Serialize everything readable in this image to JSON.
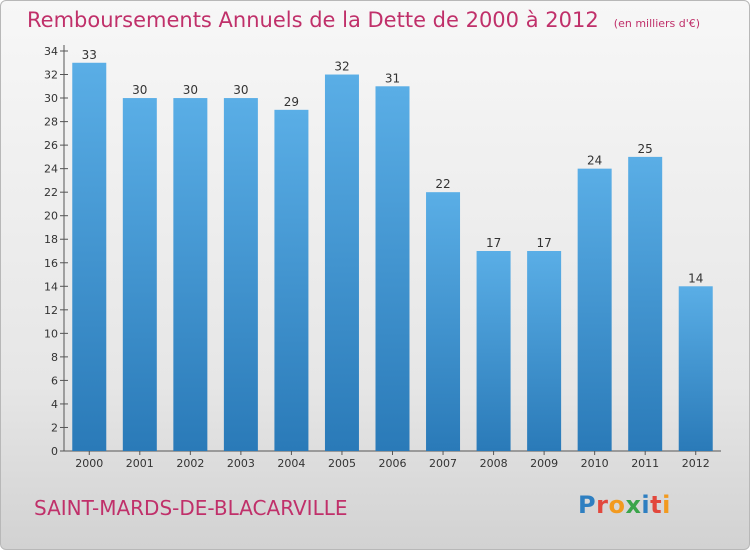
{
  "chart_data": {
    "type": "bar",
    "title": "Remboursements Annuels de la Dette de 2000 à 2012",
    "subtitle": "(en milliers d'€)",
    "categories": [
      "2000",
      "2001",
      "2002",
      "2003",
      "2004",
      "2005",
      "2006",
      "2007",
      "2008",
      "2009",
      "2010",
      "2011",
      "2012"
    ],
    "values": [
      33,
      30,
      30,
      30,
      29,
      32,
      31,
      22,
      17,
      17,
      24,
      25,
      14
    ],
    "ylim": [
      0,
      34
    ],
    "yticks": [
      0,
      2,
      4,
      6,
      8,
      10,
      12,
      14,
      16,
      18,
      20,
      22,
      24,
      26,
      28,
      30,
      32,
      34
    ],
    "grid": false,
    "legend": "none",
    "bar_color_top": "#5aaee6",
    "bar_color_bottom": "#2a7ab8"
  },
  "footer": {
    "commune": "SAINT-MARDS-DE-BLACARVILLE",
    "logo_letters": [
      "P",
      "r",
      "o",
      "x",
      "i",
      "t",
      "i"
    ],
    "logo_colors": [
      "#2e7fc1",
      "#e2483d",
      "#f29a1f",
      "#3aa54a",
      "#2e7fc1",
      "#e2483d",
      "#f29a1f"
    ]
  }
}
